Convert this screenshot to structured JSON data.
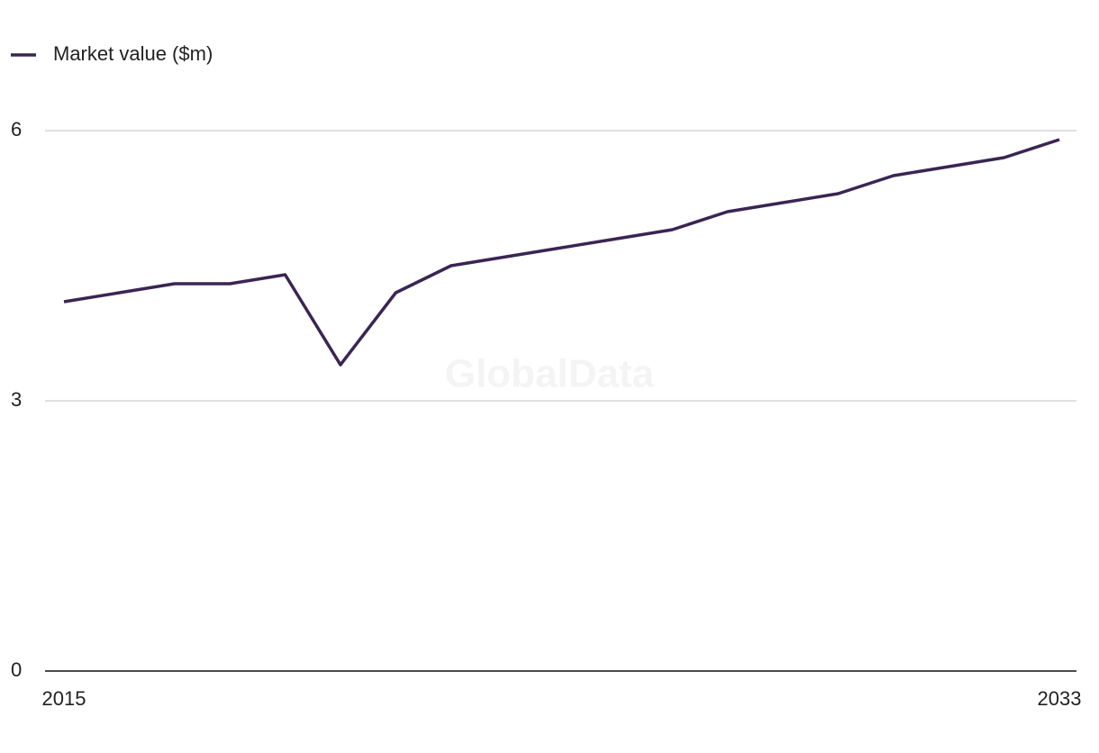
{
  "chart_data": {
    "type": "line",
    "legend": "top-left",
    "watermark": "GlobalData",
    "x": [
      2015,
      2016,
      2017,
      2018,
      2019,
      2020,
      2021,
      2022,
      2023,
      2024,
      2025,
      2026,
      2027,
      2028,
      2029,
      2030,
      2031,
      2032,
      2033
    ],
    "series": [
      {
        "name": "Market value ($m)",
        "color": "#3a2553",
        "values": [
          4.1,
          4.2,
          4.3,
          4.3,
          4.4,
          3.4,
          4.2,
          4.5,
          4.6,
          4.7,
          4.8,
          4.9,
          5.1,
          5.2,
          5.3,
          5.5,
          5.6,
          5.7,
          5.9
        ]
      }
    ],
    "xlim": [
      2015,
      2033
    ],
    "xticks": [
      2015,
      2033
    ],
    "ylim": [
      0,
      6
    ],
    "yticks": [
      0,
      3,
      6
    ],
    "grid": true
  }
}
